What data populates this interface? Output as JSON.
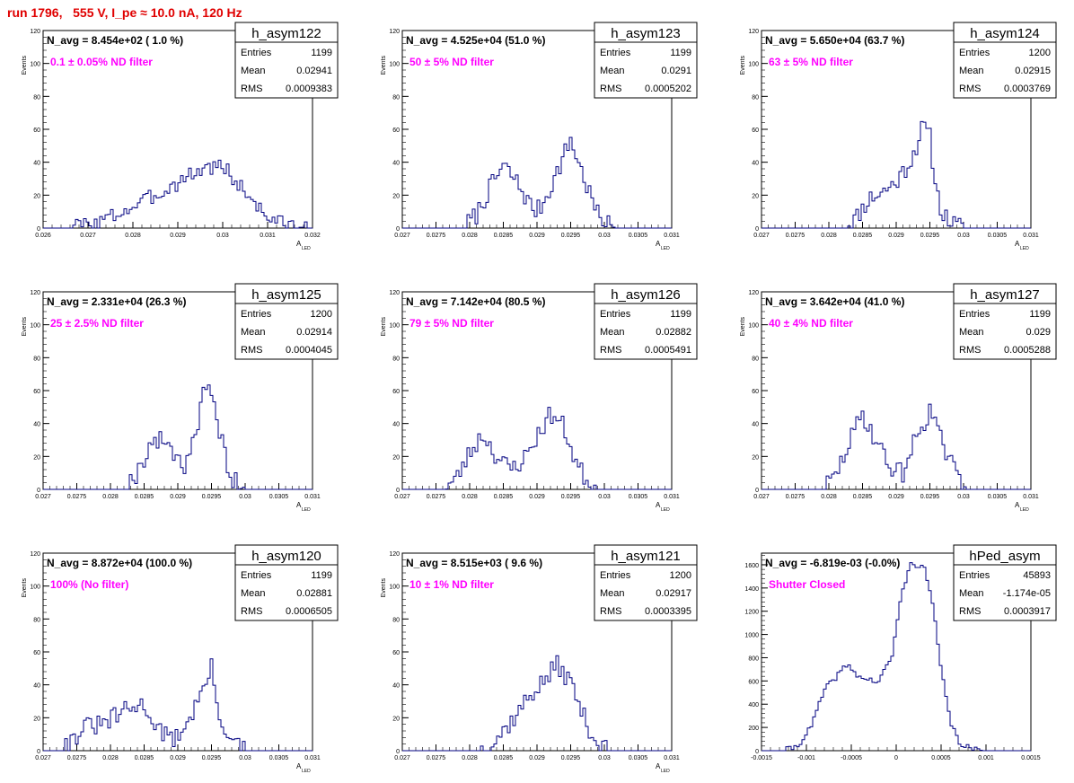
{
  "run_title": "run 1796,   555 V, I_pe ≈ 10.0 nA, 120 Hz",
  "colors": {
    "histogram": "#000080",
    "title": "#e00000",
    "filter_label": "#ff00ff",
    "axis": "#000000"
  },
  "chart_data": [
    {
      "type": "bar",
      "name": "h_asym122",
      "n_avg": "N_avg = 8.454e+02 ( 1.0 %)",
      "filter": "0.1 ± 0.05% ND filter",
      "stats": {
        "entries": "1199",
        "mean": "0.02941",
        "rms": "0.0009383"
      },
      "ylabel": "Events",
      "xlabel": "A",
      "xlabel_sub": "LED",
      "xlim": [
        0.026,
        0.032
      ],
      "ylim": [
        0,
        120
      ],
      "xticks": [
        "0.026",
        "0.027",
        "0.028",
        "0.029",
        "0.03",
        "0.031",
        "0.032"
      ],
      "yticks": [
        "0",
        "20",
        "40",
        "60",
        "80",
        "100",
        "120"
      ],
      "profile": [
        [
          0.0266,
          1
        ],
        [
          0.0272,
          3
        ],
        [
          0.0276,
          8
        ],
        [
          0.0281,
          14
        ],
        [
          0.0285,
          20
        ],
        [
          0.0289,
          26
        ],
        [
          0.0293,
          33
        ],
        [
          0.0297,
          37
        ],
        [
          0.03,
          38
        ],
        [
          0.0303,
          28
        ],
        [
          0.0307,
          16
        ],
        [
          0.031,
          7
        ],
        [
          0.0314,
          2
        ],
        [
          0.0319,
          0.5
        ]
      ],
      "noise": 5,
      "seed": 3
    },
    {
      "type": "bar",
      "name": "h_asym123",
      "n_avg": "N_avg = 4.525e+04 (51.0 %)",
      "filter": "50 ± 5% ND filter",
      "stats": {
        "entries": "1199",
        "mean": "0.0291",
        "rms": "0.0005202"
      },
      "ylabel": "Events",
      "xlabel": "A",
      "xlabel_sub": "LED",
      "xlim": [
        0.027,
        0.031
      ],
      "ylim": [
        0,
        120
      ],
      "xticks": [
        "0.027",
        "0.0275",
        "0.028",
        "0.0285",
        "0.029",
        "0.0295",
        "0.03",
        "0.0305",
        "0.031"
      ],
      "yticks": [
        "0",
        "20",
        "40",
        "60",
        "80",
        "100",
        "120"
      ],
      "profile": [
        [
          0.0279,
          0
        ],
        [
          0.0281,
          8
        ],
        [
          0.0283,
          24
        ],
        [
          0.0285,
          38
        ],
        [
          0.0287,
          28
        ],
        [
          0.0289,
          14
        ],
        [
          0.029,
          10
        ],
        [
          0.0291,
          16
        ],
        [
          0.0293,
          34
        ],
        [
          0.0295,
          54
        ],
        [
          0.0297,
          30
        ],
        [
          0.0299,
          8
        ],
        [
          0.0301,
          1
        ],
        [
          0.0302,
          0
        ]
      ],
      "noise": 6,
      "seed": 7
    },
    {
      "type": "bar",
      "name": "h_asym124",
      "n_avg": "N_avg = 5.650e+04 (63.7 %)",
      "filter": "63 ± 5% ND filter",
      "stats": {
        "entries": "1200",
        "mean": "0.02915",
        "rms": "0.0003769"
      },
      "ylabel": "Events",
      "xlabel": "A",
      "xlabel_sub": "LED",
      "xlim": [
        0.027,
        0.031
      ],
      "ylim": [
        0,
        120
      ],
      "xticks": [
        "0.027",
        "0.0275",
        "0.028",
        "0.0285",
        "0.029",
        "0.0295",
        "0.03",
        "0.0305",
        "0.031"
      ],
      "yticks": [
        "0",
        "20",
        "40",
        "60",
        "80",
        "100",
        "120"
      ],
      "profile": [
        [
          0.0282,
          0
        ],
        [
          0.0284,
          6
        ],
        [
          0.0286,
          18
        ],
        [
          0.0288,
          22
        ],
        [
          0.029,
          28
        ],
        [
          0.0292,
          40
        ],
        [
          0.0293,
          50
        ],
        [
          0.0294,
          62
        ],
        [
          0.0295,
          55
        ],
        [
          0.0296,
          22
        ],
        [
          0.0297,
          8
        ],
        [
          0.0299,
          1
        ],
        [
          0.03,
          0
        ]
      ],
      "noise": 6,
      "seed": 11
    },
    {
      "type": "bar",
      "name": "h_asym125",
      "n_avg": "N_avg = 2.331e+04 (26.3 %)",
      "filter": "25 ± 2.5% ND filter",
      "stats": {
        "entries": "1200",
        "mean": "0.02914",
        "rms": "0.0004045"
      },
      "ylabel": "Events",
      "xlabel": "A",
      "xlabel_sub": "LED",
      "xlim": [
        0.027,
        0.031
      ],
      "ylim": [
        0,
        120
      ],
      "xticks": [
        "0.027",
        "0.0275",
        "0.028",
        "0.0285",
        "0.029",
        "0.0295",
        "0.03",
        "0.0305",
        "0.031"
      ],
      "yticks": [
        "0",
        "20",
        "40",
        "60",
        "80",
        "100",
        "120"
      ],
      "profile": [
        [
          0.0282,
          0
        ],
        [
          0.0284,
          10
        ],
        [
          0.0286,
          28
        ],
        [
          0.0288,
          30
        ],
        [
          0.029,
          20
        ],
        [
          0.0291,
          14
        ],
        [
          0.0293,
          40
        ],
        [
          0.0294,
          62
        ],
        [
          0.0295,
          55
        ],
        [
          0.0297,
          22
        ],
        [
          0.0298,
          6
        ],
        [
          0.03,
          0
        ]
      ],
      "noise": 6,
      "seed": 19
    },
    {
      "type": "bar",
      "name": "h_asym126",
      "n_avg": "N_avg = 7.142e+04 (80.5 %)",
      "filter": "79 ± 5% ND filter",
      "stats": {
        "entries": "1199",
        "mean": "0.02882",
        "rms": "0.0005491"
      },
      "ylabel": "Events",
      "xlabel": "A",
      "xlabel_sub": "LED",
      "xlim": [
        0.027,
        0.031
      ],
      "ylim": [
        0,
        120
      ],
      "xticks": [
        "0.027",
        "0.0275",
        "0.028",
        "0.0285",
        "0.029",
        "0.0295",
        "0.03",
        "0.0305",
        "0.031"
      ],
      "yticks": [
        "0",
        "20",
        "40",
        "60",
        "80",
        "100",
        "120"
      ],
      "profile": [
        [
          0.0276,
          0
        ],
        [
          0.0278,
          6
        ],
        [
          0.028,
          22
        ],
        [
          0.0282,
          34
        ],
        [
          0.0284,
          20
        ],
        [
          0.0286,
          12
        ],
        [
          0.0288,
          18
        ],
        [
          0.029,
          32
        ],
        [
          0.0292,
          46
        ],
        [
          0.0294,
          38
        ],
        [
          0.0296,
          14
        ],
        [
          0.0298,
          3
        ],
        [
          0.0299,
          0
        ]
      ],
      "noise": 6,
      "seed": 23
    },
    {
      "type": "bar",
      "name": "h_asym127",
      "n_avg": "N_avg = 3.642e+04 (41.0 %)",
      "filter": "40 ± 4% ND filter",
      "stats": {
        "entries": "1199",
        "mean": "0.029",
        "rms": "0.0005288"
      },
      "ylabel": "Events",
      "xlabel": "A",
      "xlabel_sub": "LED",
      "xlim": [
        0.027,
        0.031
      ],
      "ylim": [
        0,
        120
      ],
      "xticks": [
        "0.027",
        "0.0275",
        "0.028",
        "0.0285",
        "0.029",
        "0.0295",
        "0.03",
        "0.0305",
        "0.031"
      ],
      "yticks": [
        "0",
        "20",
        "40",
        "60",
        "80",
        "100",
        "120"
      ],
      "profile": [
        [
          0.0279,
          0
        ],
        [
          0.0281,
          8
        ],
        [
          0.0283,
          28
        ],
        [
          0.0285,
          46
        ],
        [
          0.0287,
          30
        ],
        [
          0.0289,
          14
        ],
        [
          0.0291,
          10
        ],
        [
          0.0293,
          32
        ],
        [
          0.0295,
          48
        ],
        [
          0.0297,
          26
        ],
        [
          0.0299,
          8
        ],
        [
          0.0301,
          0
        ]
      ],
      "noise": 6,
      "seed": 29
    },
    {
      "type": "bar",
      "name": "h_asym120",
      "n_avg": "N_avg = 8.872e+04 (100.0 %)",
      "filter": "100% (No filter)",
      "stats": {
        "entries": "1199",
        "mean": "0.02881",
        "rms": "0.0006505"
      },
      "ylabel": "Events",
      "xlabel": "A",
      "xlabel_sub": "LED",
      "xlim": [
        0.027,
        0.031
      ],
      "ylim": [
        0,
        120
      ],
      "xticks": [
        "0.027",
        "0.0275",
        "0.028",
        "0.0285",
        "0.029",
        "0.0295",
        "0.03",
        "0.0305",
        "0.031"
      ],
      "yticks": [
        "0",
        "20",
        "40",
        "60",
        "80",
        "100",
        "120"
      ],
      "profile": [
        [
          0.0272,
          0
        ],
        [
          0.0274,
          5
        ],
        [
          0.0276,
          14
        ],
        [
          0.0279,
          16
        ],
        [
          0.0282,
          24
        ],
        [
          0.0285,
          28
        ],
        [
          0.0287,
          14
        ],
        [
          0.0289,
          6
        ],
        [
          0.0291,
          14
        ],
        [
          0.0293,
          30
        ],
        [
          0.0295,
          50
        ],
        [
          0.0296,
          24
        ],
        [
          0.0298,
          5
        ],
        [
          0.03,
          0
        ]
      ],
      "noise": 6,
      "seed": 31
    },
    {
      "type": "bar",
      "name": "h_asym121",
      "n_avg": "N_avg = 8.515e+03 ( 9.6 %)",
      "filter": "10 ± 1% ND filter",
      "stats": {
        "entries": "1200",
        "mean": "0.02917",
        "rms": "0.0003395"
      },
      "ylabel": "Events",
      "xlabel": "A",
      "xlabel_sub": "LED",
      "xlim": [
        0.027,
        0.031
      ],
      "ylim": [
        0,
        120
      ],
      "xticks": [
        "0.027",
        "0.0275",
        "0.028",
        "0.0285",
        "0.029",
        "0.0295",
        "0.03",
        "0.0305",
        "0.031"
      ],
      "yticks": [
        "0",
        "20",
        "40",
        "60",
        "80",
        "100",
        "120"
      ],
      "profile": [
        [
          0.0281,
          0
        ],
        [
          0.0283,
          3
        ],
        [
          0.0285,
          12
        ],
        [
          0.0287,
          22
        ],
        [
          0.0289,
          34
        ],
        [
          0.0291,
          42
        ],
        [
          0.0293,
          52
        ],
        [
          0.0295,
          42
        ],
        [
          0.0297,
          20
        ],
        [
          0.0299,
          4
        ],
        [
          0.0301,
          0
        ]
      ],
      "noise": 6,
      "seed": 37
    },
    {
      "type": "bar",
      "name": "hPed_asym",
      "n_avg": "N_avg = -6.819e-03 (-0.0%)",
      "filter": "Shutter Closed",
      "stats": {
        "entries": "45893",
        "mean": "-1.174e-05",
        "rms": "0.0003917"
      },
      "ylabel": "",
      "xlabel": "",
      "xlabel_sub": "",
      "xlim": [
        -0.0015,
        0.0015
      ],
      "ylim": [
        0,
        1700
      ],
      "xticks": [
        "-0.0015",
        "-0.001",
        "-0.0005",
        "0",
        "0.0005",
        "0.001",
        "0.0015"
      ],
      "yticks": [
        "0",
        "200",
        "400",
        "600",
        "800",
        "1000",
        "1200",
        "1400",
        "1600"
      ],
      "profile": [
        [
          -0.00125,
          0
        ],
        [
          -0.0011,
          40
        ],
        [
          -0.00095,
          200
        ],
        [
          -0.0008,
          520
        ],
        [
          -0.00055,
          740
        ],
        [
          -0.0004,
          630
        ],
        [
          -0.0002,
          590
        ],
        [
          -5e-05,
          800
        ],
        [
          5e-05,
          1300
        ],
        [
          0.00015,
          1600
        ],
        [
          0.0003,
          1600
        ],
        [
          0.0004,
          1300
        ],
        [
          0.0005,
          700
        ],
        [
          0.0006,
          260
        ],
        [
          0.0007,
          70
        ],
        [
          0.00085,
          8
        ],
        [
          0.00095,
          0
        ]
      ],
      "noise": 25,
      "seed": 41
    }
  ]
}
